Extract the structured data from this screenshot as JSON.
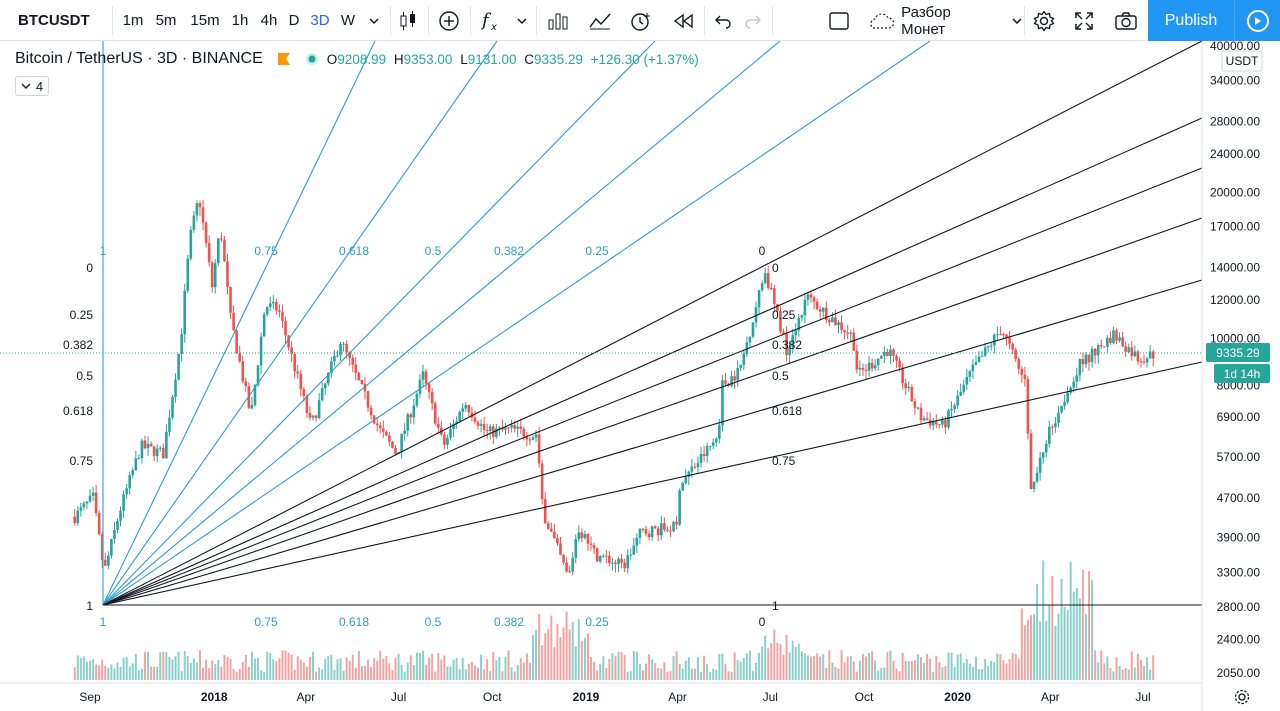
{
  "toolbar": {
    "symbol": "BTCUSDT",
    "intervals": [
      "1m",
      "5m",
      "15m",
      "1h",
      "4h",
      "D",
      "3D",
      "W"
    ],
    "active_interval": "3D",
    "layout_name": "Разбор Монет",
    "publish_label": "Publish"
  },
  "legend": {
    "title": "Bitcoin / TetherUS · 3D · BINANCE",
    "open_label": "O",
    "open": "9208.99",
    "high_label": "H",
    "high": "9353.00",
    "low_label": "L",
    "low": "9131.00",
    "close_label": "C",
    "close": "9335.29",
    "change": "+126.30 (+1.37%)",
    "indicators_count": "4"
  },
  "colors": {
    "up": "#26a69a",
    "down": "#ef5350",
    "fan_blue": "#2e9dc9",
    "fan_black": "#131722",
    "accent": "#2196f3"
  },
  "chart_data": {
    "type": "candlestick",
    "symbol": "BTCUSDT",
    "scale": "log",
    "currency": "USDT",
    "last_price": "9335.29",
    "countdown": "1d 14h",
    "price_ticks": [
      "40000.00",
      "34000.00",
      "28000.00",
      "24000.00",
      "20000.00",
      "17000.00",
      "14000.00",
      "12000.00",
      "10000.00",
      "8000.00",
      "6900.00",
      "5700.00",
      "4700.00",
      "3900.00",
      "3300.00",
      "2800.00",
      "2400.00",
      "2050.00"
    ],
    "time_ticks": [
      "Sep",
      "2018",
      "Apr",
      "Jul",
      "Oct",
      "2019",
      "Apr",
      "Jul",
      "Oct",
      "2020",
      "Apr",
      "Jul"
    ],
    "fan_levels": [
      "0",
      "0.25",
      "0.382",
      "0.5",
      "0.618",
      "0.75",
      "1"
    ],
    "fan_top_labels": [
      "1",
      "0.75",
      "0.618",
      "0.5",
      "0.382",
      "0.25",
      "0"
    ],
    "price_anchors": [
      {
        "date": "2017-08-17",
        "price": 4300
      },
      {
        "date": "2017-09-04",
        "price": 4700
      },
      {
        "date": "2017-09-15",
        "price": 3300
      },
      {
        "date": "2017-09-30",
        "price": 4400
      },
      {
        "date": "2017-10-21",
        "price": 6000
      },
      {
        "date": "2017-11-12",
        "price": 5800
      },
      {
        "date": "2017-11-29",
        "price": 9900
      },
      {
        "date": "2017-12-08",
        "price": 16000
      },
      {
        "date": "2017-12-17",
        "price": 19600
      },
      {
        "date": "2017-12-30",
        "price": 12800
      },
      {
        "date": "2018-01-07",
        "price": 17000
      },
      {
        "date": "2018-01-17",
        "price": 11000
      },
      {
        "date": "2018-02-06",
        "price": 6900
      },
      {
        "date": "2018-02-20",
        "price": 11700
      },
      {
        "date": "2018-03-05",
        "price": 11500
      },
      {
        "date": "2018-04-06",
        "price": 6600
      },
      {
        "date": "2018-05-05",
        "price": 9900
      },
      {
        "date": "2018-06-12",
        "price": 6500
      },
      {
        "date": "2018-06-29",
        "price": 5800
      },
      {
        "date": "2018-07-25",
        "price": 8400
      },
      {
        "date": "2018-08-14",
        "price": 6000
      },
      {
        "date": "2018-09-04",
        "price": 7400
      },
      {
        "date": "2018-09-25",
        "price": 6400
      },
      {
        "date": "2018-10-20",
        "price": 6500
      },
      {
        "date": "2018-11-13",
        "price": 6300
      },
      {
        "date": "2018-11-20",
        "price": 4400
      },
      {
        "date": "2018-12-15",
        "price": 3200
      },
      {
        "date": "2018-12-24",
        "price": 4100
      },
      {
        "date": "2019-01-10",
        "price": 3600
      },
      {
        "date": "2019-02-07",
        "price": 3400
      },
      {
        "date": "2019-02-24",
        "price": 4000
      },
      {
        "date": "2019-04-01",
        "price": 4100
      },
      {
        "date": "2019-04-03",
        "price": 5000
      },
      {
        "date": "2019-05-11",
        "price": 6300
      },
      {
        "date": "2019-05-14",
        "price": 8000
      },
      {
        "date": "2019-06-01",
        "price": 8600
      },
      {
        "date": "2019-06-26",
        "price": 13800
      },
      {
        "date": "2019-07-17",
        "price": 9500
      },
      {
        "date": "2019-08-06",
        "price": 12200
      },
      {
        "date": "2019-09-20",
        "price": 10100
      },
      {
        "date": "2019-09-25",
        "price": 8400
      },
      {
        "date": "2019-10-25",
        "price": 9500
      },
      {
        "date": "2019-11-25",
        "price": 6900
      },
      {
        "date": "2019-12-18",
        "price": 6600
      },
      {
        "date": "2020-01-14",
        "price": 8500
      },
      {
        "date": "2020-02-13",
        "price": 10500
      },
      {
        "date": "2020-03-08",
        "price": 8000
      },
      {
        "date": "2020-03-13",
        "price": 4800
      },
      {
        "date": "2020-03-30",
        "price": 6400
      },
      {
        "date": "2020-04-29",
        "price": 8800
      },
      {
        "date": "2020-05-20",
        "price": 9600
      },
      {
        "date": "2020-06-02",
        "price": 10200
      },
      {
        "date": "2020-06-27",
        "price": 9100
      },
      {
        "date": "2020-07-13",
        "price": 9300
      }
    ]
  }
}
